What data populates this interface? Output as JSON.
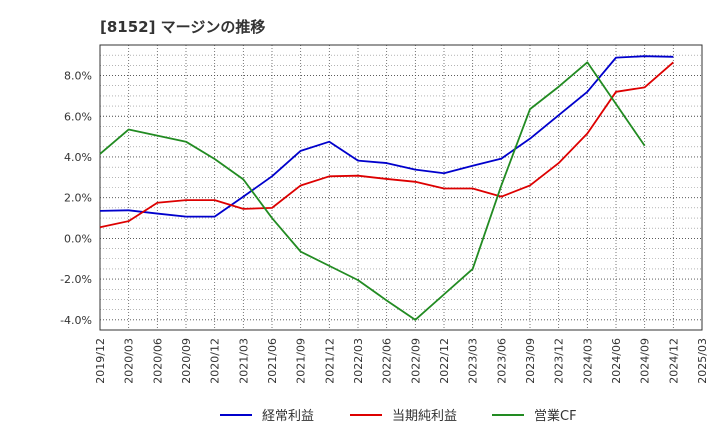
{
  "chart_data": {
    "type": "line",
    "title": "[8152]  マージンの推移",
    "xlabel": "",
    "ylabel": "",
    "ylim": [
      -4.5,
      9.5
    ],
    "yticks": [
      -4.0,
      -2.0,
      0.0,
      2.0,
      4.0,
      6.0,
      8.0
    ],
    "ytick_labels": [
      "-4.0%",
      "-2.0%",
      "0.0%",
      "2.0%",
      "4.0%",
      "6.0%",
      "8.0%"
    ],
    "categories": [
      "2019/12",
      "2020/03",
      "2020/06",
      "2020/09",
      "2020/12",
      "2021/03",
      "2021/06",
      "2021/09",
      "2021/12",
      "2022/03",
      "2022/06",
      "2022/09",
      "2022/12",
      "2023/03",
      "2023/06",
      "2023/09",
      "2023/12",
      "2024/03",
      "2024/06",
      "2024/09",
      "2024/12",
      "2025/03"
    ],
    "grid": true,
    "legend_position": "bottom",
    "series": [
      {
        "name": "経常利益",
        "color": "#0000cc",
        "values": [
          1.35,
          1.38,
          1.22,
          1.07,
          1.07,
          2.05,
          3.05,
          4.3,
          4.75,
          3.82,
          3.7,
          3.38,
          3.2,
          3.57,
          3.92,
          4.9,
          6.05,
          7.2,
          8.88,
          8.95,
          8.92,
          null
        ]
      },
      {
        "name": "当期純利益",
        "color": "#dd0000",
        "values": [
          0.55,
          0.85,
          1.75,
          1.88,
          1.88,
          1.45,
          1.5,
          2.6,
          3.05,
          3.08,
          2.92,
          2.78,
          2.45,
          2.45,
          2.05,
          2.6,
          3.7,
          5.15,
          7.2,
          7.42,
          8.65,
          null
        ]
      },
      {
        "name": "営業CF",
        "color": "#228b22",
        "values": [
          4.15,
          5.35,
          5.05,
          4.75,
          3.9,
          2.9,
          1.0,
          -0.65,
          -1.35,
          -2.05,
          -3.05,
          -4.0,
          -2.75,
          -1.5,
          2.6,
          6.35,
          7.45,
          8.65,
          6.6,
          4.55,
          null,
          null
        ]
      }
    ]
  }
}
